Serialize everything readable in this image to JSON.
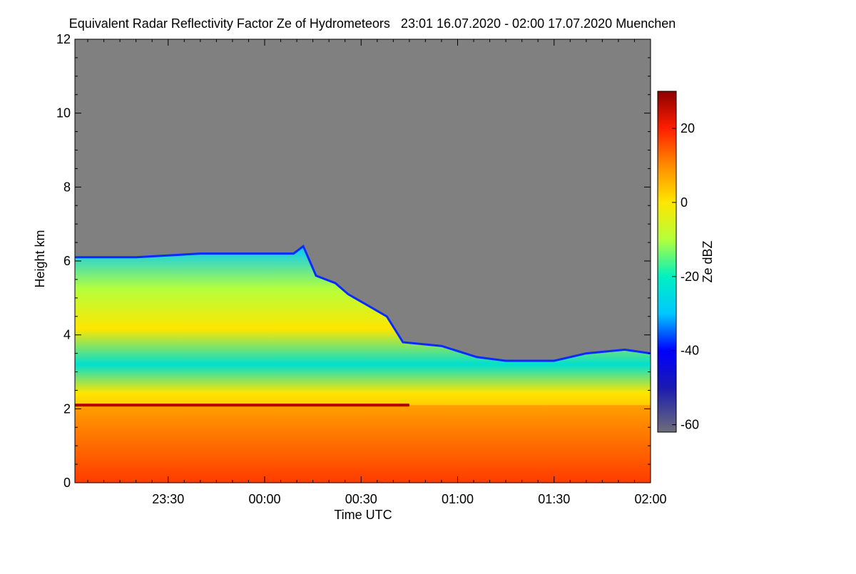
{
  "chart_data": {
    "type": "heatmap",
    "title": "Equivalent Radar Reflectivity Factor Ze of Hydrometeors   23:01 16.07.2020 - 02:00 17.07.2020 Muenchen",
    "xlabel": "Time UTC",
    "ylabel": "Height km",
    "x_range_minutes": [
      -59,
      120
    ],
    "x_ticks": [
      {
        "label": "23:30",
        "minutes": -30
      },
      {
        "label": "00:00",
        "minutes": 0
      },
      {
        "label": "00:30",
        "minutes": 30
      },
      {
        "label": "01:00",
        "minutes": 60
      },
      {
        "label": "01:30",
        "minutes": 90
      },
      {
        "label": "02:00",
        "minutes": 120
      }
    ],
    "ylim": [
      0,
      12
    ],
    "y_ticks": [
      0,
      2,
      4,
      6,
      8,
      10,
      12
    ],
    "colorbar": {
      "label": "Ze dBZ",
      "range": [
        -62,
        30
      ],
      "ticks": [
        20,
        0,
        -20,
        -40,
        -60
      ],
      "stops": [
        {
          "value": -62,
          "color": "#6e6e7a"
        },
        {
          "value": -50,
          "color": "#1a1ab0"
        },
        {
          "value": -40,
          "color": "#0000ff"
        },
        {
          "value": -30,
          "color": "#00c8ff"
        },
        {
          "value": -20,
          "color": "#00f0c0"
        },
        {
          "value": -10,
          "color": "#b4ff3c"
        },
        {
          "value": 0,
          "color": "#ffe600"
        },
        {
          "value": 10,
          "color": "#ff8c00"
        },
        {
          "value": 20,
          "color": "#ff1e00"
        },
        {
          "value": 30,
          "color": "#8b0000"
        }
      ]
    },
    "background_color": "#808080",
    "echo_top_km": [
      {
        "minutes": -59,
        "km": 6.1
      },
      {
        "minutes": -40,
        "km": 6.1
      },
      {
        "minutes": -20,
        "km": 6.2
      },
      {
        "minutes": 0,
        "km": 6.2
      },
      {
        "minutes": 9,
        "km": 6.2
      },
      {
        "minutes": 12,
        "km": 6.4
      },
      {
        "minutes": 16,
        "km": 5.6
      },
      {
        "minutes": 22,
        "km": 5.4
      },
      {
        "minutes": 26,
        "km": 5.1
      },
      {
        "minutes": 32,
        "km": 4.8
      },
      {
        "minutes": 38,
        "km": 4.5
      },
      {
        "minutes": 43,
        "km": 3.8
      },
      {
        "minutes": 55,
        "km": 3.7
      },
      {
        "minutes": 66,
        "km": 3.4
      },
      {
        "minutes": 75,
        "km": 3.3
      },
      {
        "minutes": 90,
        "km": 3.3
      },
      {
        "minutes": 100,
        "km": 3.5
      },
      {
        "minutes": 112,
        "km": 3.6
      },
      {
        "minutes": 120,
        "km": 3.5
      }
    ],
    "bright_band_km": 2.1,
    "bright_band_end_minutes": 45
  }
}
